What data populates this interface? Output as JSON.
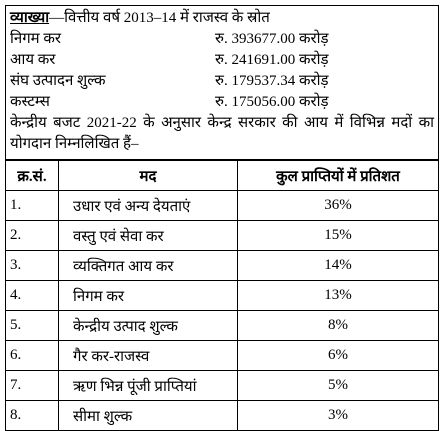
{
  "explanation": {
    "label": "व्याख्या",
    "title": "—वित्तीय वर्ष 2013–14 में राजस्व के स्रोत",
    "sources": [
      [
        "निगम कर",
        "रु. 393677.00 करोड़"
      ],
      [
        "आय कर",
        "रु. 241691.00 करोड़"
      ],
      [
        "संघ उत्पादन शुल्क",
        "रु. 179537.34 करोड़"
      ],
      [
        "कस्टम्स",
        "रु. 175056.00 करोड़"
      ]
    ],
    "paragraph": "केन्द्रीय बजट 2021-22 के अनुसार केन्द्र सरकार की आय में विभिन्न मदों का योगदान निम्नलिखित हैं–"
  },
  "table": {
    "header": [
      "क्र.सं.",
      "मद",
      "कुल प्राप्तियों में प्रतिशत"
    ],
    "rows": [
      [
        "1.",
        "उधार एवं अन्य देयताएं",
        "36%"
      ],
      [
        "2.",
        "वस्तु एवं सेवा कर",
        "15%"
      ],
      [
        "3.",
        "व्यक्तिगत आय कर",
        "14%"
      ],
      [
        "4.",
        "निगम कर",
        "13%"
      ],
      [
        "5.",
        "केन्द्रीय उत्पाद शुल्क",
        "8%"
      ],
      [
        "6.",
        "गैर कर-राजस्व",
        "6%"
      ],
      [
        "7.",
        "ऋण भिन्न पूंजी प्राप्तियां",
        "5%"
      ],
      [
        "8.",
        "सीमा शुल्क",
        "3%"
      ]
    ]
  }
}
